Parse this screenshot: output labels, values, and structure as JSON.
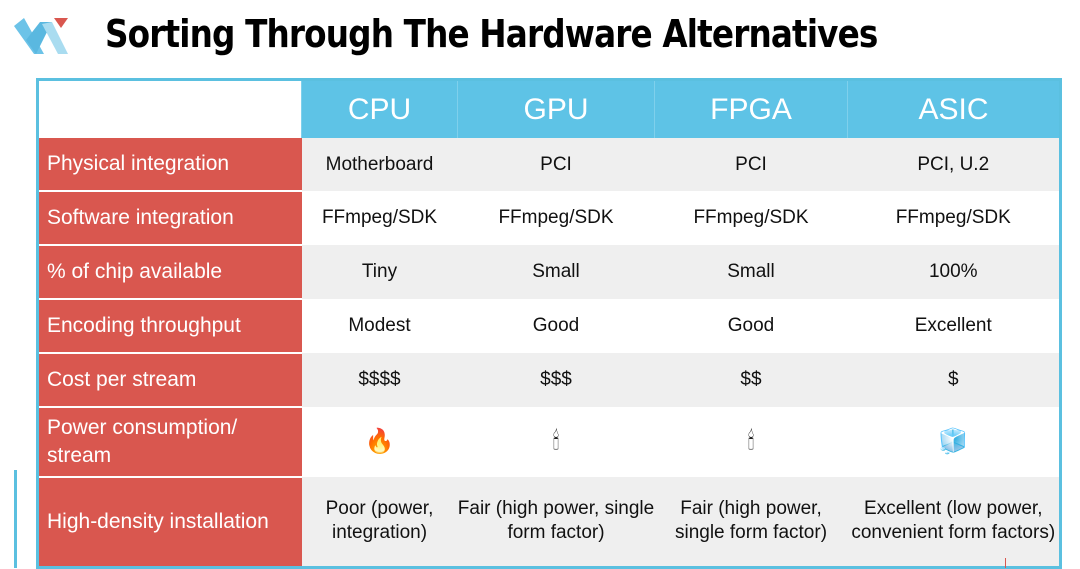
{
  "title": "Sorting Through The Hardware Alternatives",
  "columns": [
    "CPU",
    "GPU",
    "FPGA",
    "ASIC"
  ],
  "rows": [
    {
      "label": "Physical integration",
      "cells": [
        "Motherboard",
        "PCI",
        "PCI",
        "PCI, U.2"
      ]
    },
    {
      "label": "Software integration",
      "cells": [
        "FFmpeg/SDK",
        "FFmpeg/SDK",
        "FFmpeg/SDK",
        "FFmpeg/SDK"
      ]
    },
    {
      "label": "% of chip available",
      "cells": [
        "Tiny",
        "Small",
        "Small",
        "100%"
      ]
    },
    {
      "label": "Encoding throughput",
      "cells": [
        "Modest",
        "Good",
        "Good",
        "Excellent"
      ]
    },
    {
      "label": "Cost per stream",
      "cells": [
        "$$$$",
        "$$$",
        "$$",
        "$"
      ]
    },
    {
      "label": "Power consumption/ stream",
      "icons": [
        "fire-icon",
        "candle-icon",
        "candle-icon",
        "ice-cube-icon"
      ],
      "glyphs": [
        "🔥",
        "🕯",
        "🕯",
        "🧊"
      ]
    },
    {
      "label": "High-density installation",
      "cells": [
        "Poor (power, integration)",
        "Fair (high power, single form factor)",
        "Fair (high power, single form factor)",
        "Excellent (low power, convenient form factors)"
      ]
    }
  ],
  "colors": {
    "header": "#5ec3e6",
    "label": "#d9574f",
    "border": "#5bc0e0"
  }
}
